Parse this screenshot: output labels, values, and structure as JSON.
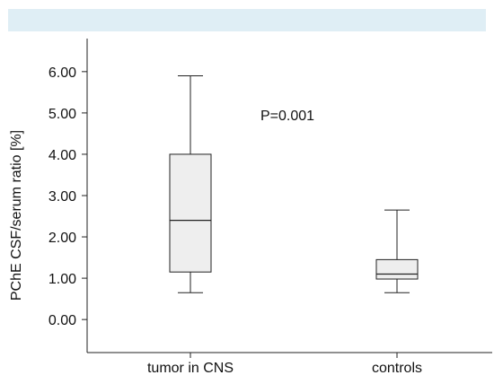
{
  "colors": {
    "banner": "#dfeef5",
    "box_fill": "#eeeeee",
    "stroke": "#222222"
  },
  "chart_data": {
    "type": "boxplot",
    "title": "",
    "xlabel": "",
    "ylabel": "PChE CSF/serum ratio [%]",
    "ylim": [
      -0.8,
      6.8
    ],
    "yticks": [
      "0.00",
      "1.00",
      "2.00",
      "3.00",
      "4.00",
      "5.00",
      "6.00"
    ],
    "categories": [
      "tumor in CNS",
      "controls"
    ],
    "boxes": [
      {
        "category": "tumor in CNS",
        "min": 0.65,
        "q1": 1.15,
        "median": 2.4,
        "q3": 4.0,
        "max": 5.9
      },
      {
        "category": "controls",
        "min": 0.65,
        "q1": 0.98,
        "median": 1.1,
        "q3": 1.45,
        "max": 2.65
      }
    ],
    "annotations": [
      {
        "text": "P=0.001"
      }
    ],
    "grid": false
  }
}
